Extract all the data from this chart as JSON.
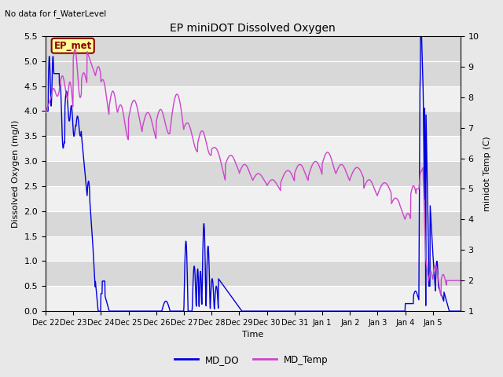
{
  "title": "EP miniDOT Dissolved Oxygen",
  "subtitle": "No data for f_WaterLevel",
  "xlabel": "Time",
  "ylabel_left": "Dissolved Oxygen (mg/l)",
  "ylabel_right": "minidot Temp (C)",
  "legend_label1": "EP_met",
  "legend_label2": "MD_DO",
  "legend_label3": "MD_Temp",
  "ylim_left": [
    0.0,
    5.5
  ],
  "ylim_right": [
    1.0,
    10.0
  ],
  "do_color": "#0000dd",
  "temp_color": "#cc44cc",
  "ep_met_box_facecolor": "#ffff99",
  "ep_met_box_edgecolor": "#8B0000",
  "ep_met_text_color": "#8B0000",
  "fig_facecolor": "#e8e8e8",
  "plot_facecolor": "#e8e8e8",
  "grid_color": "#ffffff",
  "band_color_light": "#f0f0f0",
  "band_color_dark": "#d8d8d8",
  "figsize": [
    6.4,
    4.8
  ],
  "dpi": 100
}
